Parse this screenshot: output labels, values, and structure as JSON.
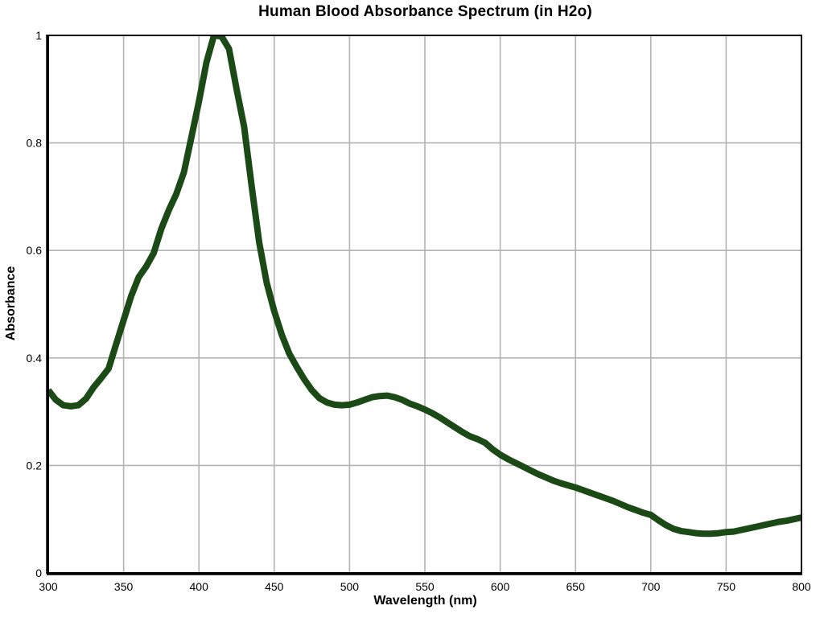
{
  "chart_data": {
    "type": "line",
    "title": "Human Blood Absorbance Spectrum (in H2o)",
    "xlabel": "Wavelength (nm)",
    "ylabel": "Absorbance",
    "xlim": [
      300,
      800
    ],
    "ylim": [
      0,
      1
    ],
    "x_ticks": [
      300,
      350,
      400,
      450,
      500,
      550,
      600,
      650,
      700,
      750,
      800
    ],
    "x_tick_labels": [
      "300",
      "350",
      "400",
      "450",
      "500",
      "550",
      "600",
      "650",
      "700",
      "750",
      "800"
    ],
    "y_ticks": [
      0,
      0.2,
      0.4,
      0.6,
      0.8,
      1
    ],
    "y_tick_labels": [
      "0",
      "0.2",
      "0.4",
      "0.6",
      "0.8",
      "1"
    ],
    "grid": true,
    "legend": "none",
    "colors": {
      "line": "#1b4a17",
      "grid": "#b3b3b3",
      "axis": "#000000",
      "background": "#ffffff",
      "text": "#000000"
    },
    "series": [
      {
        "name": "Human blood absorbance",
        "x": [
          300,
          305,
          310,
          315,
          320,
          325,
          330,
          335,
          340,
          345,
          350,
          355,
          360,
          365,
          370,
          375,
          380,
          385,
          390,
          395,
          400,
          405,
          410,
          415,
          420,
          425,
          430,
          435,
          440,
          445,
          450,
          455,
          460,
          465,
          470,
          475,
          480,
          485,
          490,
          495,
          500,
          505,
          510,
          515,
          520,
          525,
          530,
          535,
          540,
          545,
          550,
          555,
          560,
          565,
          570,
          575,
          580,
          585,
          590,
          595,
          600,
          605,
          610,
          615,
          620,
          625,
          630,
          635,
          640,
          645,
          650,
          655,
          660,
          665,
          670,
          675,
          680,
          685,
          690,
          695,
          700,
          705,
          710,
          715,
          720,
          725,
          730,
          735,
          740,
          745,
          750,
          755,
          760,
          765,
          770,
          775,
          780,
          785,
          790,
          795,
          800
        ],
        "y": [
          0.34,
          0.322,
          0.312,
          0.31,
          0.312,
          0.324,
          0.345,
          0.362,
          0.38,
          0.425,
          0.47,
          0.515,
          0.55,
          0.57,
          0.595,
          0.64,
          0.675,
          0.705,
          0.745,
          0.81,
          0.877,
          0.95,
          1.0,
          0.998,
          0.975,
          0.9,
          0.83,
          0.72,
          0.615,
          0.54,
          0.487,
          0.443,
          0.408,
          0.383,
          0.36,
          0.34,
          0.325,
          0.317,
          0.313,
          0.312,
          0.313,
          0.317,
          0.322,
          0.327,
          0.329,
          0.33,
          0.327,
          0.322,
          0.315,
          0.31,
          0.304,
          0.297,
          0.289,
          0.28,
          0.271,
          0.262,
          0.254,
          0.249,
          0.242,
          0.23,
          0.22,
          0.212,
          0.205,
          0.198,
          0.191,
          0.184,
          0.178,
          0.172,
          0.167,
          0.163,
          0.159,
          0.154,
          0.149,
          0.144,
          0.139,
          0.134,
          0.128,
          0.122,
          0.117,
          0.112,
          0.108,
          0.098,
          0.089,
          0.082,
          0.078,
          0.076,
          0.074,
          0.073,
          0.073,
          0.074,
          0.076,
          0.077,
          0.08,
          0.083,
          0.086,
          0.089,
          0.092,
          0.095,
          0.097,
          0.1,
          0.103
        ]
      }
    ]
  }
}
